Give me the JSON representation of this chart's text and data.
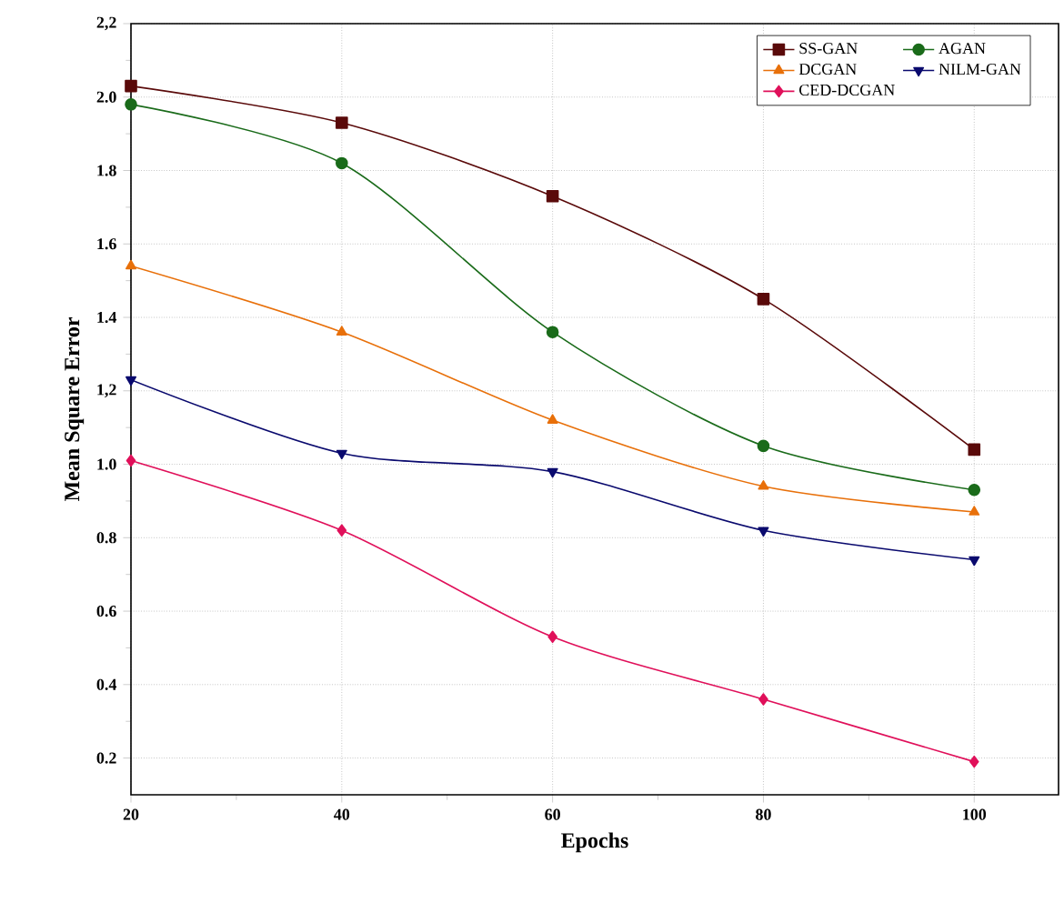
{
  "chart_data": {
    "type": "line",
    "xlabel": "Epochs",
    "ylabel": "Mean Square Error",
    "x": [
      20,
      40,
      60,
      80,
      100
    ],
    "series": [
      {
        "name": "SS-GAN",
        "color": "#5a0a0a",
        "marker": "square",
        "values": [
          2.03,
          1.93,
          1.73,
          1.45,
          1.04
        ]
      },
      {
        "name": "AGAN",
        "color": "#1a6b1a",
        "marker": "circle",
        "values": [
          1.98,
          1.82,
          1.36,
          1.05,
          0.93
        ]
      },
      {
        "name": "DCGAN",
        "color": "#e8700a",
        "marker": "triangle",
        "values": [
          1.54,
          1.36,
          1.12,
          0.94,
          0.87
        ]
      },
      {
        "name": "NILM-GAN",
        "color": "#0a0a6e",
        "marker": "triangle down",
        "values": [
          1.23,
          1.03,
          0.98,
          0.82,
          0.74
        ]
      },
      {
        "name": "CED-DCGAN",
        "color": "#e0105a",
        "marker": "diamond",
        "values": [
          1.01,
          0.82,
          0.53,
          0.36,
          0.19
        ]
      }
    ],
    "xlim": [
      20,
      108
    ],
    "ylim": [
      0.1,
      2.2
    ],
    "xticks": [
      20,
      40,
      60,
      80,
      100
    ],
    "yticks": [
      0.2,
      0.4,
      0.6,
      0.8,
      {
        "value": 1.0,
        "label": "1.0"
      },
      {
        "value": 1.2,
        "label": "1,2"
      },
      1.4,
      1.6,
      1.8,
      {
        "value": 2.0,
        "label": "2.0"
      },
      {
        "value": 2.2,
        "label": "2,2"
      }
    ],
    "grid": true,
    "legend": "top right",
    "line_style": "solid"
  }
}
